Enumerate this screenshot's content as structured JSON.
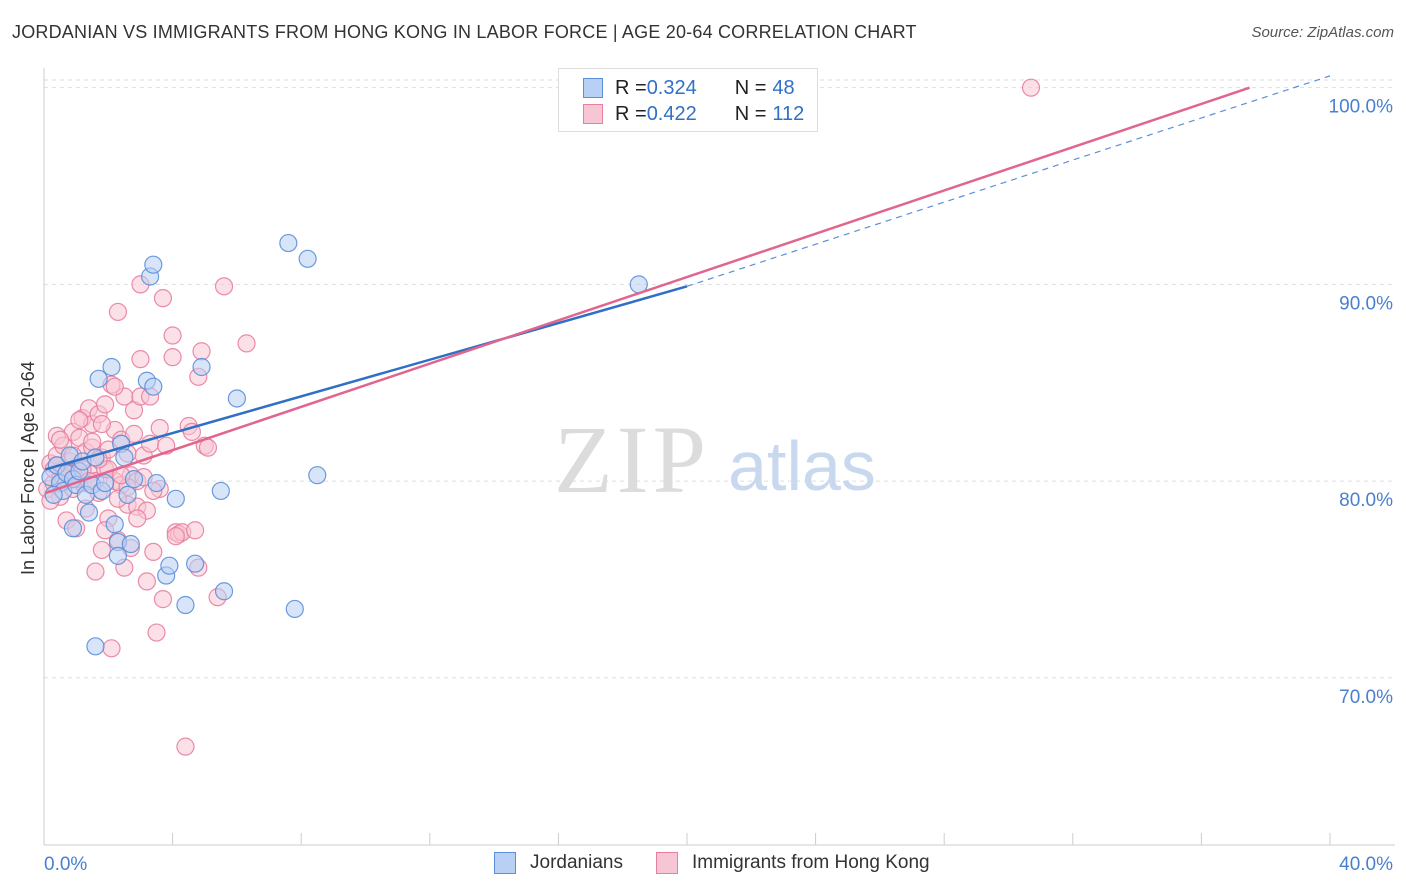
{
  "header": {
    "title": "JORDANIAN VS IMMIGRANTS FROM HONG KONG IN LABOR FORCE | AGE 20-64 CORRELATION CHART",
    "source": "Source: ZipAtlas.com"
  },
  "watermark": {
    "zip": "ZIP",
    "atlas": "atlas"
  },
  "legend": {
    "rows": [
      {
        "r_label": "R = ",
        "r_value": "0.324",
        "n_label": "N = ",
        "n_value": "48"
      },
      {
        "r_label": "R = ",
        "r_value": "0.422",
        "n_label": "N = ",
        "n_value": "112"
      }
    ]
  },
  "colors": {
    "jordanians_fill": "#b8d0f4",
    "jordanians_stroke": "#5b8fd9",
    "jordanians_line": "#2f6fc4",
    "hongkong_fill": "#f7c6d4",
    "hongkong_stroke": "#e87fa0",
    "hongkong_line": "#e0668f",
    "tick_text": "#4a7fd0",
    "grid": "#dddddd"
  },
  "chart_data": {
    "type": "scatter",
    "ylabel": "In Labor Force | Age 20-64",
    "xlim": [
      0,
      40
    ],
    "ylim": [
      61.5,
      101
    ],
    "x_tick_labels": [
      "0.0%",
      "40.0%"
    ],
    "y_ticks": [
      70,
      80,
      90,
      100
    ],
    "y_tick_labels": [
      "70.0%",
      "80.0%",
      "90.0%",
      "100.0%"
    ],
    "series": [
      {
        "name": "Jordanians",
        "trend": {
          "x": [
            0.05,
            20
          ],
          "y": [
            80.6,
            89.9
          ],
          "dashed_to": [
            40,
            100.6
          ]
        },
        "points": [
          [
            0.2,
            80.2
          ],
          [
            0.4,
            80.8
          ],
          [
            0.5,
            79.9
          ],
          [
            0.6,
            79.5
          ],
          [
            0.7,
            80.4
          ],
          [
            0.8,
            81.3
          ],
          [
            0.9,
            80.1
          ],
          [
            1.0,
            79.8
          ],
          [
            0.9,
            77.6
          ],
          [
            1.1,
            80.5
          ],
          [
            1.2,
            81.0
          ],
          [
            1.3,
            79.3
          ],
          [
            1.4,
            78.4
          ],
          [
            1.5,
            79.8
          ],
          [
            1.6,
            81.2
          ],
          [
            1.7,
            85.2
          ],
          [
            1.8,
            79.5
          ],
          [
            1.9,
            79.9
          ],
          [
            2.1,
            85.8
          ],
          [
            2.2,
            77.8
          ],
          [
            2.3,
            76.9
          ],
          [
            2.4,
            81.9
          ],
          [
            2.5,
            81.2
          ],
          [
            2.6,
            79.3
          ],
          [
            2.7,
            76.8
          ],
          [
            2.8,
            80.1
          ],
          [
            1.6,
            71.6
          ],
          [
            2.3,
            76.2
          ],
          [
            3.2,
            85.1
          ],
          [
            3.4,
            84.8
          ],
          [
            3.5,
            79.9
          ],
          [
            3.3,
            90.4
          ],
          [
            3.4,
            91.0
          ],
          [
            3.8,
            75.2
          ],
          [
            3.9,
            75.7
          ],
          [
            4.1,
            79.1
          ],
          [
            4.4,
            73.7
          ],
          [
            4.7,
            75.8
          ],
          [
            4.9,
            85.8
          ],
          [
            5.5,
            79.5
          ],
          [
            5.6,
            74.4
          ],
          [
            6.0,
            84.2
          ],
          [
            7.6,
            92.1
          ],
          [
            7.8,
            73.5
          ],
          [
            8.2,
            91.3
          ],
          [
            8.5,
            80.3
          ],
          [
            18.5,
            90.0
          ],
          [
            0.3,
            79.3
          ]
        ]
      },
      {
        "name": "Immigrants from Hong Kong",
        "trend": {
          "x": [
            0.05,
            37.5
          ],
          "y": [
            79.4,
            100.0
          ]
        },
        "points": [
          [
            0.1,
            79.6
          ],
          [
            0.2,
            80.9
          ],
          [
            0.3,
            79.9
          ],
          [
            0.3,
            80.6
          ],
          [
            0.4,
            81.3
          ],
          [
            0.4,
            82.3
          ],
          [
            0.5,
            80.1
          ],
          [
            0.5,
            79.2
          ],
          [
            0.6,
            80.5
          ],
          [
            0.6,
            81.8
          ],
          [
            0.7,
            80.0
          ],
          [
            0.7,
            78.0
          ],
          [
            0.8,
            80.3
          ],
          [
            0.8,
            81.0
          ],
          [
            0.9,
            82.5
          ],
          [
            0.9,
            79.6
          ],
          [
            1.0,
            80.7
          ],
          [
            1.0,
            77.6
          ],
          [
            1.1,
            82.2
          ],
          [
            1.1,
            80.2
          ],
          [
            1.2,
            83.2
          ],
          [
            1.2,
            79.9
          ],
          [
            1.3,
            81.5
          ],
          [
            1.3,
            78.6
          ],
          [
            1.4,
            83.7
          ],
          [
            1.4,
            80.4
          ],
          [
            1.5,
            82.9
          ],
          [
            1.5,
            81.7
          ],
          [
            1.6,
            80.0
          ],
          [
            1.6,
            75.4
          ],
          [
            1.7,
            83.4
          ],
          [
            1.7,
            79.4
          ],
          [
            1.8,
            81.2
          ],
          [
            1.8,
            76.5
          ],
          [
            1.9,
            83.9
          ],
          [
            1.9,
            80.6
          ],
          [
            2.0,
            81.6
          ],
          [
            2.0,
            78.1
          ],
          [
            2.1,
            84.9
          ],
          [
            2.1,
            71.5
          ],
          [
            2.2,
            82.6
          ],
          [
            2.2,
            80.0
          ],
          [
            2.3,
            88.6
          ],
          [
            2.3,
            77.0
          ],
          [
            2.4,
            82.1
          ],
          [
            2.4,
            79.8
          ],
          [
            2.5,
            75.6
          ],
          [
            2.5,
            84.3
          ],
          [
            2.6,
            81.4
          ],
          [
            2.6,
            78.8
          ],
          [
            2.7,
            80.3
          ],
          [
            2.7,
            76.6
          ],
          [
            2.8,
            83.6
          ],
          [
            2.8,
            82.4
          ],
          [
            2.9,
            80.0
          ],
          [
            2.9,
            78.7
          ],
          [
            3.0,
            86.2
          ],
          [
            3.0,
            84.3
          ],
          [
            3.1,
            81.3
          ],
          [
            3.1,
            80.2
          ],
          [
            3.2,
            78.5
          ],
          [
            3.2,
            74.9
          ],
          [
            3.3,
            84.3
          ],
          [
            3.3,
            81.9
          ],
          [
            3.4,
            76.4
          ],
          [
            3.5,
            72.3
          ],
          [
            3.6,
            82.7
          ],
          [
            3.6,
            79.6
          ],
          [
            3.7,
            89.3
          ],
          [
            3.7,
            74.0
          ],
          [
            3.8,
            81.8
          ],
          [
            4.0,
            87.4
          ],
          [
            4.0,
            86.3
          ],
          [
            4.1,
            77.4
          ],
          [
            4.2,
            77.3
          ],
          [
            4.3,
            77.4
          ],
          [
            4.4,
            66.5
          ],
          [
            4.5,
            82.8
          ],
          [
            4.6,
            82.5
          ],
          [
            4.7,
            77.5
          ],
          [
            4.8,
            75.6
          ],
          [
            4.8,
            85.3
          ],
          [
            4.9,
            86.6
          ],
          [
            5.0,
            81.8
          ],
          [
            5.1,
            81.7
          ],
          [
            5.4,
            74.1
          ],
          [
            5.6,
            89.9
          ],
          [
            6.3,
            87.0
          ],
          [
            3.0,
            90.0
          ],
          [
            1.5,
            82.0
          ],
          [
            0.9,
            81.3
          ],
          [
            1.8,
            82.9
          ],
          [
            2.2,
            84.8
          ],
          [
            2.6,
            79.7
          ],
          [
            0.4,
            80.8
          ],
          [
            0.6,
            80.2
          ],
          [
            0.8,
            80.4
          ],
          [
            1.0,
            80.1
          ],
          [
            1.2,
            80.6
          ],
          [
            1.4,
            80.0
          ],
          [
            2.0,
            80.6
          ],
          [
            2.4,
            80.3
          ],
          [
            3.4,
            79.5
          ],
          [
            4.1,
            77.2
          ],
          [
            1.7,
            81.1
          ],
          [
            2.9,
            78.1
          ],
          [
            0.5,
            82.1
          ],
          [
            1.1,
            83.1
          ],
          [
            1.9,
            77.5
          ],
          [
            2.3,
            79.1
          ],
          [
            30.7,
            100.0
          ],
          [
            0.2,
            79.0
          ]
        ]
      }
    ]
  },
  "bottom_legend": {
    "jordanians": "Jordanians",
    "hongkong": "Immigrants from Hong Kong"
  }
}
